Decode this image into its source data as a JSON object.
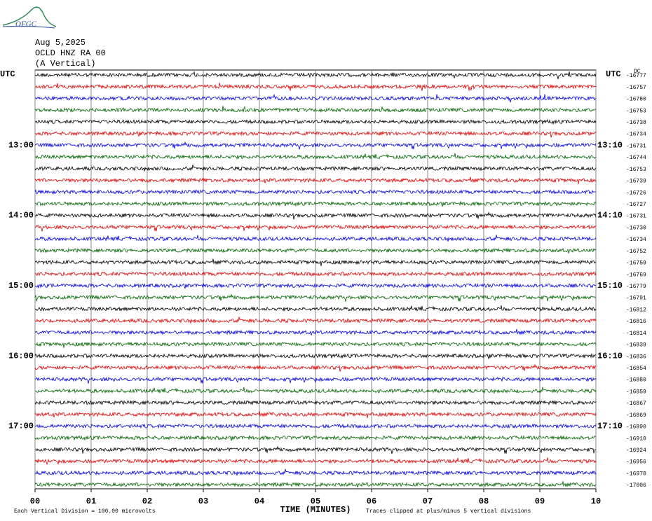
{
  "chart_data": {
    "type": "helicorder",
    "logo": "OFGC",
    "date": "Aug 5,2025",
    "station": "OCLD HNZ RA 00",
    "component": "(A Vertical)",
    "left_axis_label": "UTC",
    "right_axis_label": "UTC",
    "offset_header": "DC",
    "xlabel": "TIME (MINUTES)",
    "scale_note": "Each Vertical Division =  100.00 microvolts",
    "clip_note": "Traces clipped at plus/minus 5 vertical divisions",
    "xlim": [
      0,
      10
    ],
    "xticks": [
      {
        "value": 0,
        "label": "00"
      },
      {
        "value": 1,
        "label": "01"
      },
      {
        "value": 2,
        "label": "02"
      },
      {
        "value": 3,
        "label": "03"
      },
      {
        "value": 4,
        "label": "04"
      },
      {
        "value": 5,
        "label": "05"
      },
      {
        "value": 6,
        "label": "06"
      },
      {
        "value": 7,
        "label": "07"
      },
      {
        "value": 8,
        "label": "08"
      },
      {
        "value": 9,
        "label": "09"
      },
      10
    ],
    "grid": true,
    "colors": [
      "#000000",
      "#e00000",
      "#0000e0",
      "#006400"
    ],
    "left_times": [
      null,
      null,
      null,
      null,
      null,
      null,
      "13:00",
      null,
      null,
      null,
      null,
      null,
      "14:00",
      null,
      null,
      null,
      null,
      null,
      "15:00",
      null,
      null,
      null,
      null,
      null,
      "16:00",
      null,
      null,
      null,
      null,
      null,
      "17:00",
      null,
      null,
      null,
      null,
      null
    ],
    "right_times": [
      null,
      null,
      null,
      null,
      null,
      null,
      "13:10",
      null,
      null,
      null,
      null,
      null,
      "14:10",
      null,
      null,
      null,
      null,
      null,
      "15:10",
      null,
      null,
      null,
      null,
      null,
      "16:10",
      null,
      null,
      null,
      null,
      null,
      "17:10",
      null,
      null,
      null,
      null,
      null
    ],
    "offsets": [
      -16777,
      -16757,
      -16780,
      -16753,
      -16738,
      -16734,
      -16731,
      -16744,
      -16753,
      -16739,
      -16726,
      -16727,
      -16731,
      -16730,
      -16734,
      -16752,
      -16759,
      -16769,
      -16779,
      -16791,
      -16812,
      -16816,
      -16814,
      -16839,
      -16836,
      -16854,
      -16880,
      -16859,
      -16867,
      -16869,
      -16890,
      -16910,
      -16924,
      -16956,
      -16970,
      -17006
    ]
  }
}
